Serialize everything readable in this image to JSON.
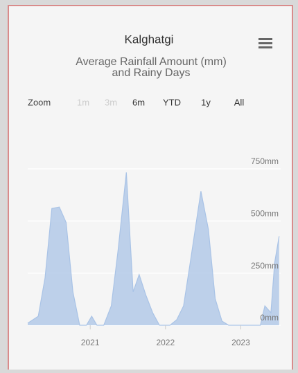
{
  "toolbar": {
    "zoom_label": "Zoom",
    "buttons": [
      "1m",
      "3m",
      "6m",
      "YTD",
      "1y",
      "All"
    ],
    "disabled": [
      true,
      true,
      false,
      false,
      false,
      false
    ]
  },
  "chart_data": {
    "type": "area",
    "title": "Kalghatgi",
    "subtitle": [
      "Average Rainfall Amount (mm)",
      "and Rainy Days"
    ],
    "x": [
      2020.17,
      2020.31,
      2020.4,
      2020.49,
      2020.59,
      2020.68,
      2020.77,
      2020.86,
      2020.95,
      2021.02,
      2021.09,
      2021.18,
      2021.28,
      2021.37,
      2021.48,
      2021.57,
      2021.65,
      2021.74,
      2021.83,
      2021.92,
      2022.06,
      2022.15,
      2022.24,
      2022.34,
      2022.47,
      2022.57,
      2022.66,
      2022.75,
      2022.84,
      2023.03,
      2023.26,
      2023.32,
      2023.4,
      2023.45,
      2023.51
    ],
    "series": [
      {
        "color": "#a9c3e6",
        "values": [
          10,
          43,
          227,
          560,
          567,
          493,
          160,
          0,
          0,
          43,
          0,
          0,
          93,
          360,
          733,
          160,
          243,
          143,
          60,
          0,
          0,
          27,
          93,
          327,
          643,
          460,
          127,
          20,
          0,
          0,
          0,
          93,
          60,
          300,
          427
        ]
      }
    ],
    "xlim": [
      2020.17,
      2023.53
    ],
    "xticks": [
      2021,
      2022,
      2023
    ],
    "ylim": [
      0,
      780
    ],
    "yticks": [
      {
        "value": 0,
        "label": "0mm"
      },
      {
        "value": 250,
        "label": "250mm"
      },
      {
        "value": 500,
        "label": "500mm"
      },
      {
        "value": 750,
        "label": "750mm"
      }
    ],
    "grid": true
  }
}
